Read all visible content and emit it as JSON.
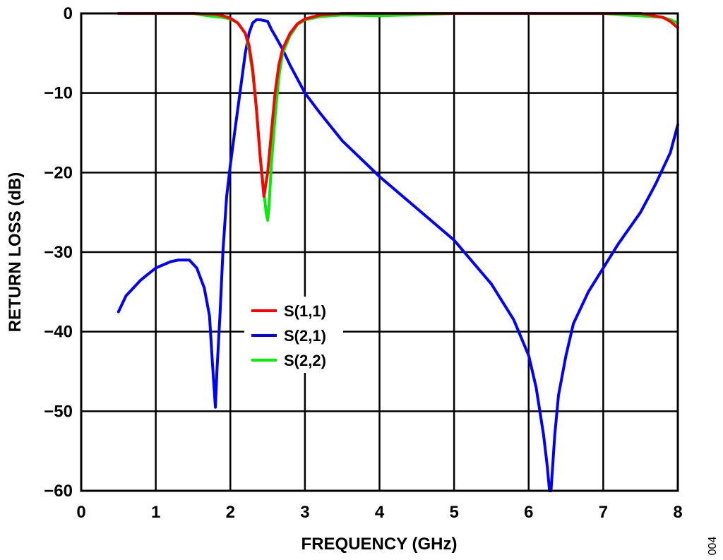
{
  "figure_id": "004",
  "chart_data": {
    "type": "line",
    "xlabel": "FREQUENCY (GHz)",
    "ylabel": "RETURN LOSS (dB)",
    "xlim": [
      0,
      8
    ],
    "ylim": [
      -60,
      0
    ],
    "xticks": [
      0,
      1,
      2,
      3,
      4,
      5,
      6,
      7,
      8
    ],
    "yticks": [
      0,
      -10,
      -20,
      -30,
      -40,
      -50,
      -60
    ],
    "xtick_labels": [
      "0",
      "1",
      "2",
      "3",
      "4",
      "5",
      "6",
      "7",
      "8"
    ],
    "ytick_labels": [
      "0",
      "−10",
      "−20",
      "−30",
      "−40",
      "−50",
      "−60"
    ],
    "grid": true,
    "legend_position": "center-left",
    "series": [
      {
        "name": "S(1,1)",
        "color": "#ff0000",
        "x": [
          0.5,
          1.0,
          1.5,
          1.8,
          1.9,
          2.0,
          2.1,
          2.2,
          2.25,
          2.3,
          2.35,
          2.4,
          2.45,
          2.5,
          2.55,
          2.6,
          2.65,
          2.7,
          2.8,
          2.9,
          3.0,
          3.2,
          3.5,
          4.0,
          5.0,
          6.0,
          7.0,
          7.5,
          7.8,
          7.9,
          8.0
        ],
        "y": [
          0,
          0,
          0,
          -0.1,
          -0.3,
          -0.6,
          -1.2,
          -2.5,
          -4.0,
          -7.0,
          -12.0,
          -18.0,
          -23.0,
          -20.0,
          -15.0,
          -10.0,
          -6.5,
          -4.5,
          -2.5,
          -1.3,
          -0.7,
          -0.2,
          0,
          0,
          0,
          0,
          0,
          0,
          -0.5,
          -1.0,
          -1.8
        ]
      },
      {
        "name": "S(2,1)",
        "color": "#0000ff",
        "x": [
          0.5,
          0.6,
          0.8,
          1.0,
          1.2,
          1.3,
          1.45,
          1.55,
          1.65,
          1.72,
          1.76,
          1.8,
          1.82,
          1.86,
          1.9,
          1.95,
          2.0,
          2.05,
          2.1,
          2.15,
          2.2,
          2.25,
          2.3,
          2.35,
          2.4,
          2.45,
          2.5,
          2.55,
          2.6,
          2.7,
          2.8,
          3.0,
          3.2,
          3.5,
          4.0,
          4.5,
          5.0,
          5.5,
          5.8,
          6.0,
          6.1,
          6.2,
          6.25,
          6.28,
          6.3,
          6.35,
          6.4,
          6.5,
          6.6,
          6.8,
          7.0,
          7.2,
          7.5,
          7.7,
          7.9,
          8.0
        ],
        "y": [
          -37.5,
          -35.5,
          -33.5,
          -32.0,
          -31.2,
          -31.0,
          -31.0,
          -32.0,
          -34.5,
          -38.0,
          -44.0,
          -49.5,
          -45.0,
          -38.0,
          -30.0,
          -23.0,
          -19.0,
          -15.5,
          -12.0,
          -8.5,
          -5.0,
          -2.5,
          -1.2,
          -0.8,
          -0.8,
          -0.9,
          -1.0,
          -2.0,
          -2.8,
          -4.5,
          -6.5,
          -10.0,
          -12.5,
          -16.0,
          -20.5,
          -24.5,
          -28.5,
          -34.0,
          -38.5,
          -43.0,
          -47.0,
          -53.0,
          -57.0,
          -60.0,
          -60.0,
          -53.0,
          -48.0,
          -43.0,
          -39.0,
          -35.0,
          -32.0,
          -29.0,
          -25.0,
          -21.5,
          -17.5,
          -14.0
        ]
      },
      {
        "name": "S(2,2)",
        "color": "#00ee00",
        "x": [
          0.5,
          1.0,
          1.5,
          1.7,
          1.8,
          1.9,
          2.0,
          2.1,
          2.2,
          2.25,
          2.3,
          2.35,
          2.4,
          2.45,
          2.48,
          2.5,
          2.52,
          2.55,
          2.6,
          2.65,
          2.7,
          2.8,
          2.9,
          3.0,
          3.2,
          3.5,
          4.0,
          5.0,
          6.0,
          7.0,
          7.3,
          7.5,
          7.8,
          7.9,
          8.0
        ],
        "y": [
          0,
          0,
          0,
          -0.3,
          -0.4,
          -0.5,
          -0.7,
          -1.2,
          -2.5,
          -4.5,
          -7.5,
          -12.0,
          -18.0,
          -22.5,
          -25.0,
          -26.0,
          -24.0,
          -19.0,
          -13.0,
          -8.0,
          -5.0,
          -2.8,
          -1.4,
          -0.8,
          -0.4,
          -0.2,
          -0.3,
          0,
          0,
          0,
          -0.2,
          -0.3,
          -0.5,
          -0.8,
          -1.2
        ]
      }
    ]
  }
}
